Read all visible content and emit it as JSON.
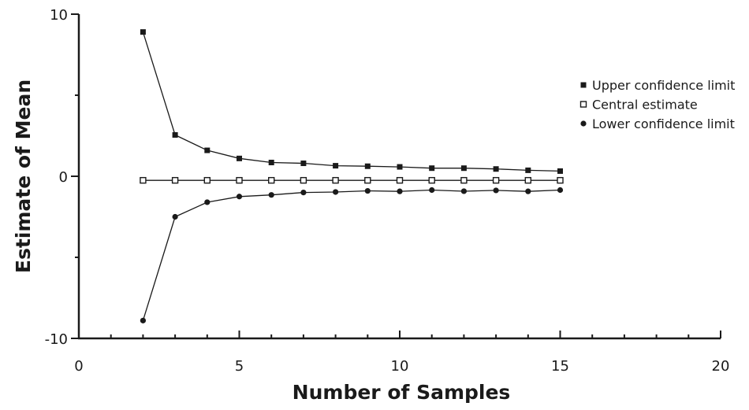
{
  "chart_data": {
    "type": "line",
    "title": "",
    "xlabel": "Number of Samples",
    "ylabel": "Estimate of Mean",
    "xlim": [
      0,
      20
    ],
    "ylim": [
      -10,
      10
    ],
    "x_major_ticks": [
      0,
      5,
      10,
      15,
      20
    ],
    "x_tick_labels": [
      "0",
      "5",
      "10",
      "15",
      "20"
    ],
    "y_major_ticks": [
      -10,
      0,
      10
    ],
    "y_tick_labels": [
      "-10",
      "0",
      "10"
    ],
    "grid": false,
    "legend_position": "right",
    "x": [
      2,
      3,
      4,
      5,
      6,
      7,
      8,
      9,
      10,
      11,
      12,
      13,
      14,
      15
    ],
    "series": [
      {
        "name": "Upper confidence limit",
        "marker": "filled-square",
        "values": [
          8.9,
          2.55,
          1.6,
          1.1,
          0.85,
          0.8,
          0.65,
          0.62,
          0.58,
          0.5,
          0.5,
          0.45,
          0.37,
          0.32
        ]
      },
      {
        "name": "Central estimate",
        "marker": "open-square",
        "values": [
          -0.25,
          -0.25,
          -0.25,
          -0.25,
          -0.25,
          -0.25,
          -0.25,
          -0.25,
          -0.25,
          -0.25,
          -0.25,
          -0.25,
          -0.25,
          -0.25
        ]
      },
      {
        "name": "Lower confidence limit",
        "marker": "filled-circle",
        "values": [
          -8.9,
          -2.5,
          -1.6,
          -1.25,
          -1.15,
          -1.0,
          -0.97,
          -0.9,
          -0.93,
          -0.85,
          -0.92,
          -0.87,
          -0.93,
          -0.85
        ]
      }
    ],
    "colors": {
      "line": "#1a1a1a",
      "marker": "#1a1a1a",
      "open_marker_fill": "#ffffff"
    }
  }
}
